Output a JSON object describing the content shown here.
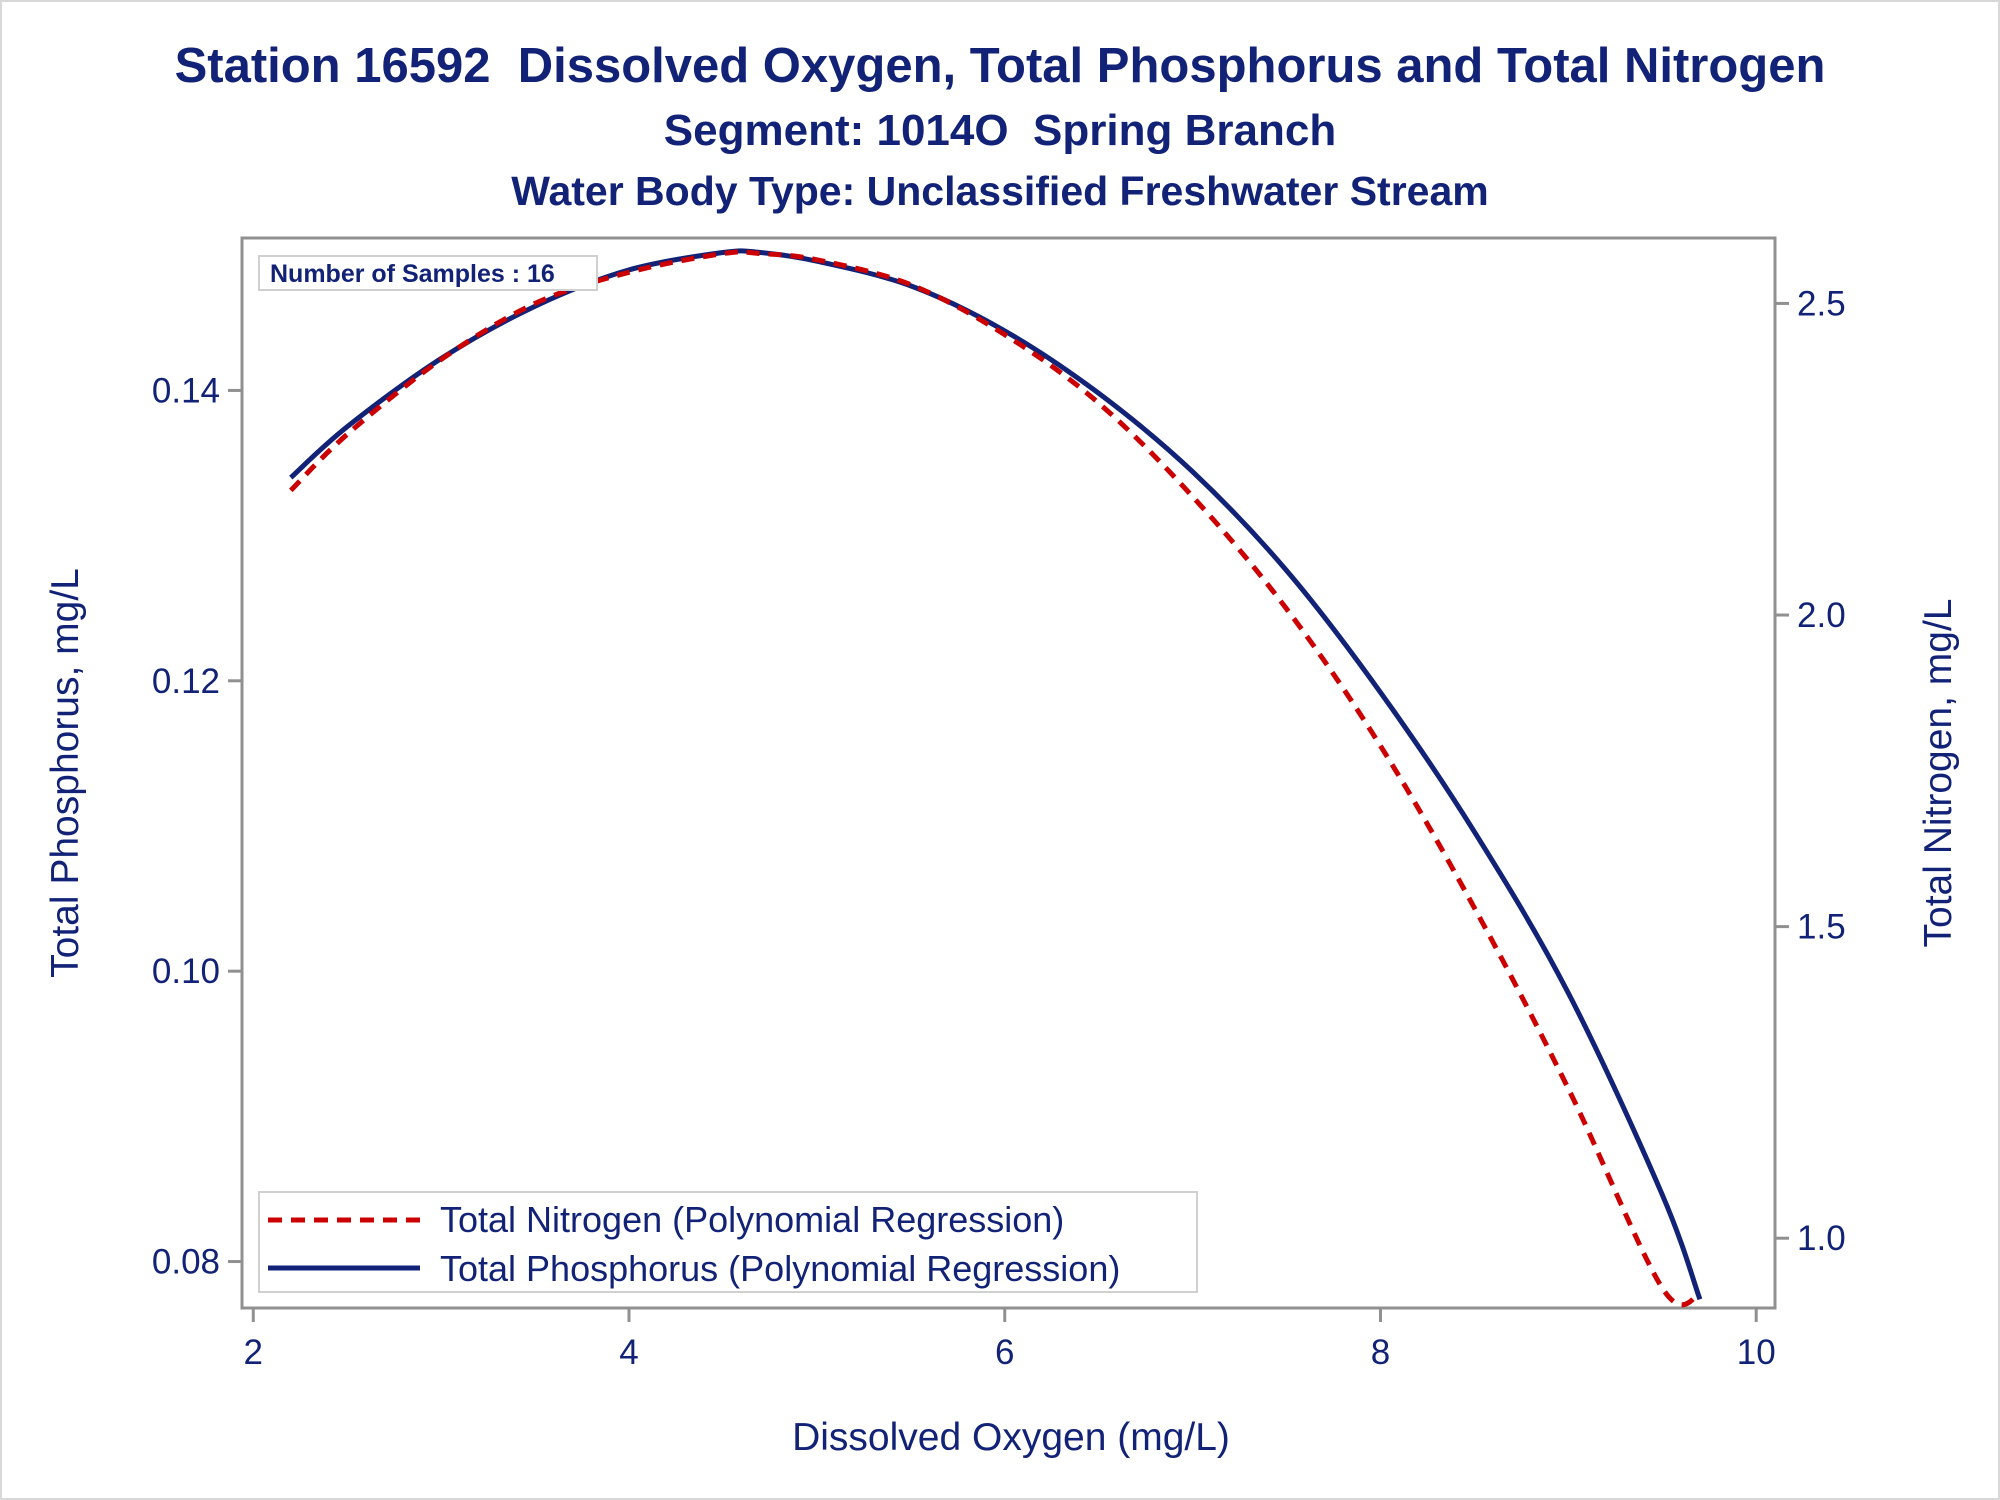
{
  "titles": {
    "line1": "Station 16592  Dissolved Oxygen, Total Phosphorus and Total Nitrogen",
    "line2": "Segment: 1014O  Spring Branch",
    "line3": "Water Body Type: Unclassified Freshwater Stream"
  },
  "inset": {
    "samples_text": "Number of Samples : 16"
  },
  "colors": {
    "text": "#112277",
    "phosphorus_line": "#112277",
    "nitrogen_line": "#cc0000",
    "axis": "#909090"
  },
  "chart_data": {
    "type": "line",
    "xlabel": "Dissolved Oxygen (mg/L)",
    "ylabel_left": "Total Phosphorus, mg/L",
    "ylabel_right": "Total Nitrogen, mg/L",
    "xlim": [
      1.94,
      10.1
    ],
    "ylim_left": [
      0.0768,
      0.1505
    ],
    "ylim_right": [
      0.888,
      2.605
    ],
    "x_ticks": [
      "2",
      "4",
      "6",
      "8",
      "10"
    ],
    "x_tick_values": [
      2,
      4,
      6,
      8,
      10
    ],
    "y_left_ticks": [
      "0.08",
      "0.10",
      "0.12",
      "0.14"
    ],
    "y_left_tick_values": [
      0.08,
      0.1,
      0.12,
      0.14
    ],
    "y_right_ticks": [
      "1.0",
      "1.5",
      "2.0",
      "2.5"
    ],
    "y_right_tick_values": [
      1.0,
      1.5,
      2.0,
      2.5
    ],
    "grid": false,
    "legend_position": "bottom-left",
    "series": [
      {
        "name": "Total Nitrogen (Polynomial Regression)",
        "axis": "right",
        "style": "dashed",
        "x": [
          2.2,
          2.5,
          3.0,
          3.5,
          4.0,
          4.5,
          4.7,
          5.0,
          5.5,
          6.0,
          6.5,
          7.0,
          7.5,
          8.0,
          8.5,
          9.0,
          9.5,
          9.7
        ],
        "y": [
          2.2,
          2.29,
          2.41,
          2.5,
          2.55,
          2.58,
          2.58,
          2.57,
          2.53,
          2.45,
          2.34,
          2.19,
          2.01,
          1.79,
          1.53,
          1.24,
          0.92,
          0.91
        ]
      },
      {
        "name": "Total Phosphorus (Polynomial Regression)",
        "axis": "left",
        "style": "solid",
        "x": [
          2.2,
          2.5,
          3.0,
          3.5,
          4.0,
          4.5,
          4.7,
          5.0,
          5.5,
          6.0,
          6.5,
          7.0,
          7.5,
          8.0,
          8.5,
          9.0,
          9.5,
          9.7
        ],
        "y": [
          0.134,
          0.1375,
          0.1422,
          0.1458,
          0.1483,
          0.1495,
          0.1495,
          0.1489,
          0.1472,
          0.1441,
          0.1398,
          0.1344,
          0.1276,
          0.1192,
          0.1096,
          0.0985,
          0.0846,
          0.0774
        ]
      }
    ]
  }
}
